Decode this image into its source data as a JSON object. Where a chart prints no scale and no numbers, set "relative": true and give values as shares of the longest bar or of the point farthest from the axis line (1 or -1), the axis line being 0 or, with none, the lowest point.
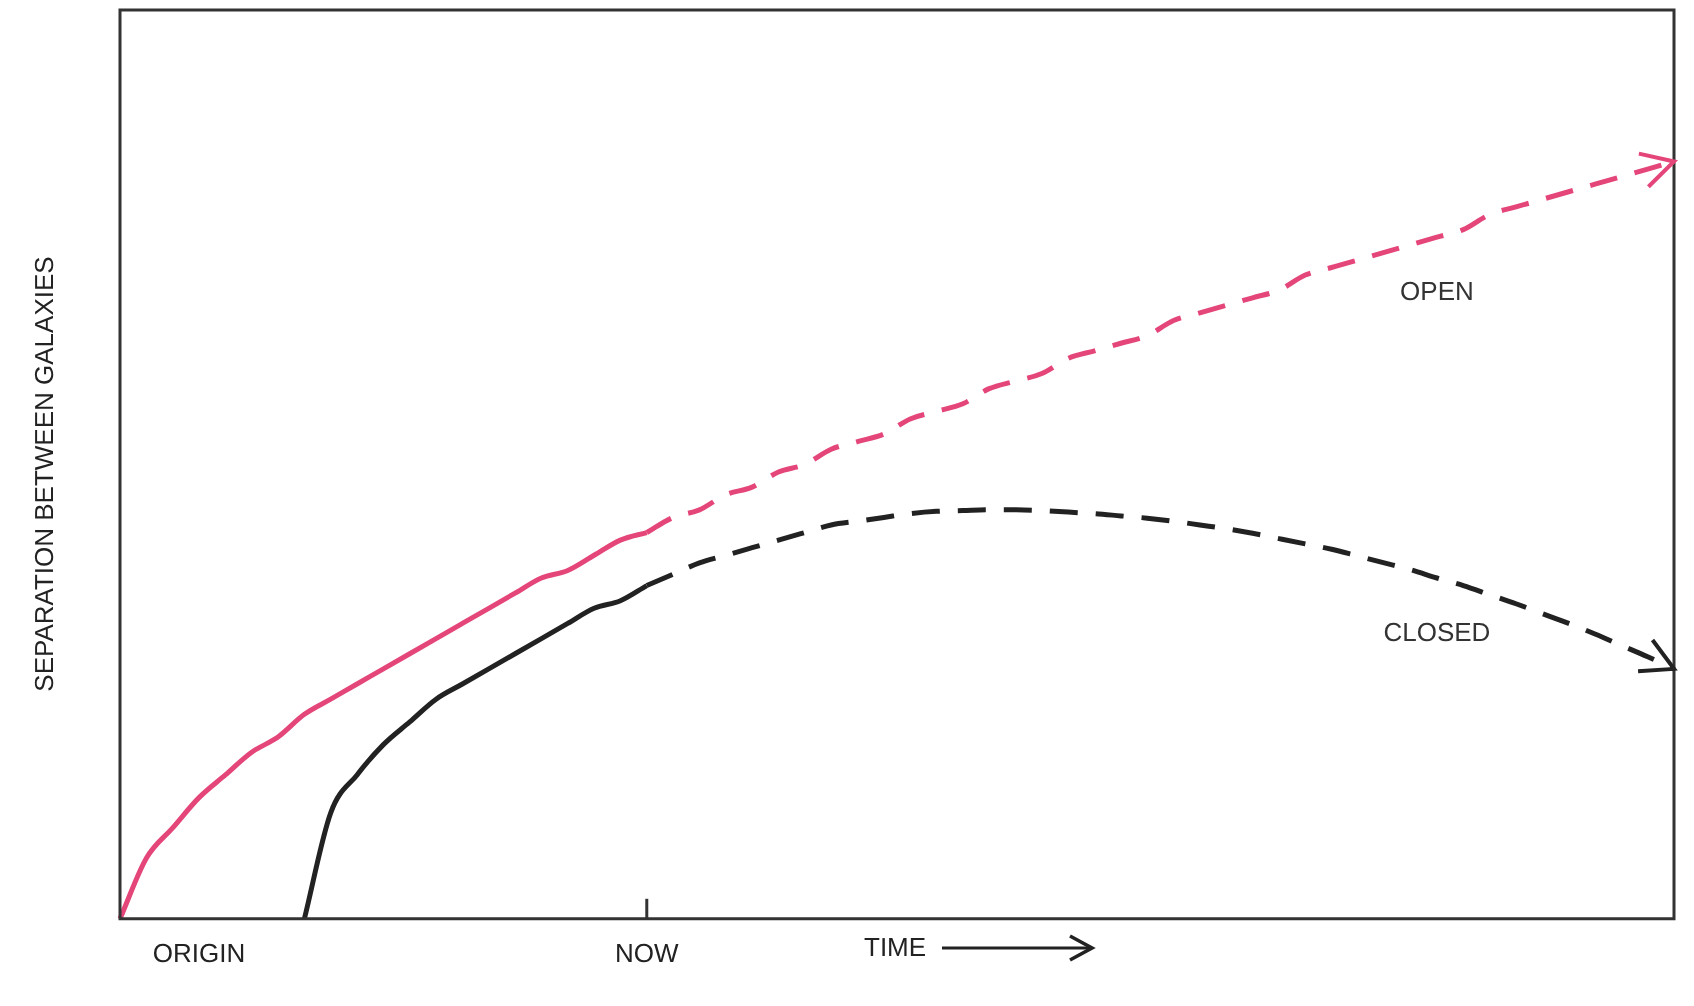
{
  "chart_data": {
    "type": "line",
    "relative": true,
    "xlabel": "TIME",
    "ylabel": "SEPARATION BETWEEN GALAXIES",
    "categories": [
      null,
      null,
      null,
      "ORIGIN",
      null,
      null,
      null,
      null,
      null,
      null,
      null,
      null,
      null,
      null,
      null,
      null,
      null,
      null,
      null,
      null,
      "NOW",
      null,
      null,
      null,
      null,
      null,
      null,
      null,
      null,
      null,
      null,
      null,
      null,
      null,
      null,
      null,
      null,
      null,
      null,
      null,
      null,
      null,
      null,
      null,
      null,
      null,
      null,
      null,
      null,
      null,
      null,
      null,
      null,
      null,
      null,
      null,
      null,
      null,
      null,
      null
    ],
    "series": [
      {
        "color": "#e5467a",
        "line_style": "solid",
        "values": [
          0,
          0.08,
          0.12,
          0.16,
          0.19,
          0.22,
          0.24,
          0.27,
          0.29,
          0.31,
          0.33,
          0.35,
          0.37,
          0.39,
          0.41,
          0.43,
          0.45,
          0.46,
          0.48,
          0.5,
          0.51,
          null,
          null,
          null,
          null,
          null,
          null,
          null,
          null,
          null,
          null,
          null,
          null,
          null,
          null,
          null,
          null,
          null,
          null,
          null,
          null,
          null,
          null,
          null,
          null,
          null,
          null,
          null,
          null,
          null,
          null,
          null,
          null,
          null,
          null,
          null,
          null,
          null,
          null,
          null
        ]
      },
      {
        "name": "OPEN",
        "color": "#e5467a",
        "line_style": "dashed",
        "values": [
          null,
          null,
          null,
          null,
          null,
          null,
          null,
          null,
          null,
          null,
          null,
          null,
          null,
          null,
          null,
          null,
          null,
          null,
          null,
          null,
          0.51,
          0.53,
          0.54,
          0.56,
          0.57,
          0.59,
          0.6,
          0.62,
          0.63,
          0.64,
          0.66,
          0.67,
          0.68,
          0.7,
          0.71,
          0.72,
          0.74,
          0.75,
          0.76,
          0.77,
          0.79,
          0.8,
          0.81,
          0.82,
          0.83,
          0.85,
          0.86,
          0.87,
          0.88,
          0.89,
          0.9,
          0.91,
          0.93,
          0.94,
          0.95,
          0.96,
          0.97,
          0.98,
          0.99,
          1
        ]
      },
      {
        "color": "#222222",
        "line_style": "solid",
        "values": [
          null,
          null,
          null,
          null,
          null,
          null,
          null,
          0,
          0.14,
          0.19,
          0.23,
          0.26,
          0.29,
          0.31,
          0.33,
          0.35,
          0.37,
          0.39,
          0.41,
          0.42,
          0.44,
          null,
          null,
          null,
          null,
          null,
          null,
          null,
          null,
          null,
          null,
          null,
          null,
          null,
          null,
          null,
          null,
          null,
          null,
          null,
          null,
          null,
          null,
          null,
          null,
          null,
          null,
          null,
          null,
          null,
          null,
          null,
          null,
          null,
          null,
          null,
          null,
          null,
          null,
          null
        ]
      },
      {
        "name": "CLOSED",
        "color": "#222222",
        "line_style": "dashed",
        "values": [
          null,
          null,
          null,
          null,
          null,
          null,
          null,
          null,
          null,
          null,
          null,
          null,
          null,
          null,
          null,
          null,
          null,
          null,
          null,
          null,
          0.44,
          0.455,
          0.47,
          0.48,
          0.49,
          0.5,
          0.51,
          0.52,
          0.525,
          0.53,
          0.535,
          0.538,
          0.539,
          0.54,
          0.54,
          0.539,
          0.537,
          0.535,
          0.532,
          0.529,
          0.525,
          0.52,
          0.515,
          0.509,
          0.502,
          0.495,
          0.488,
          0.479,
          0.47,
          0.461,
          0.45,
          0.44,
          0.428,
          0.416,
          0.403,
          0.39,
          0.376,
          0.361,
          0.346,
          0.33
        ]
      }
    ],
    "grid": false,
    "legend": false,
    "marker": "none"
  }
}
